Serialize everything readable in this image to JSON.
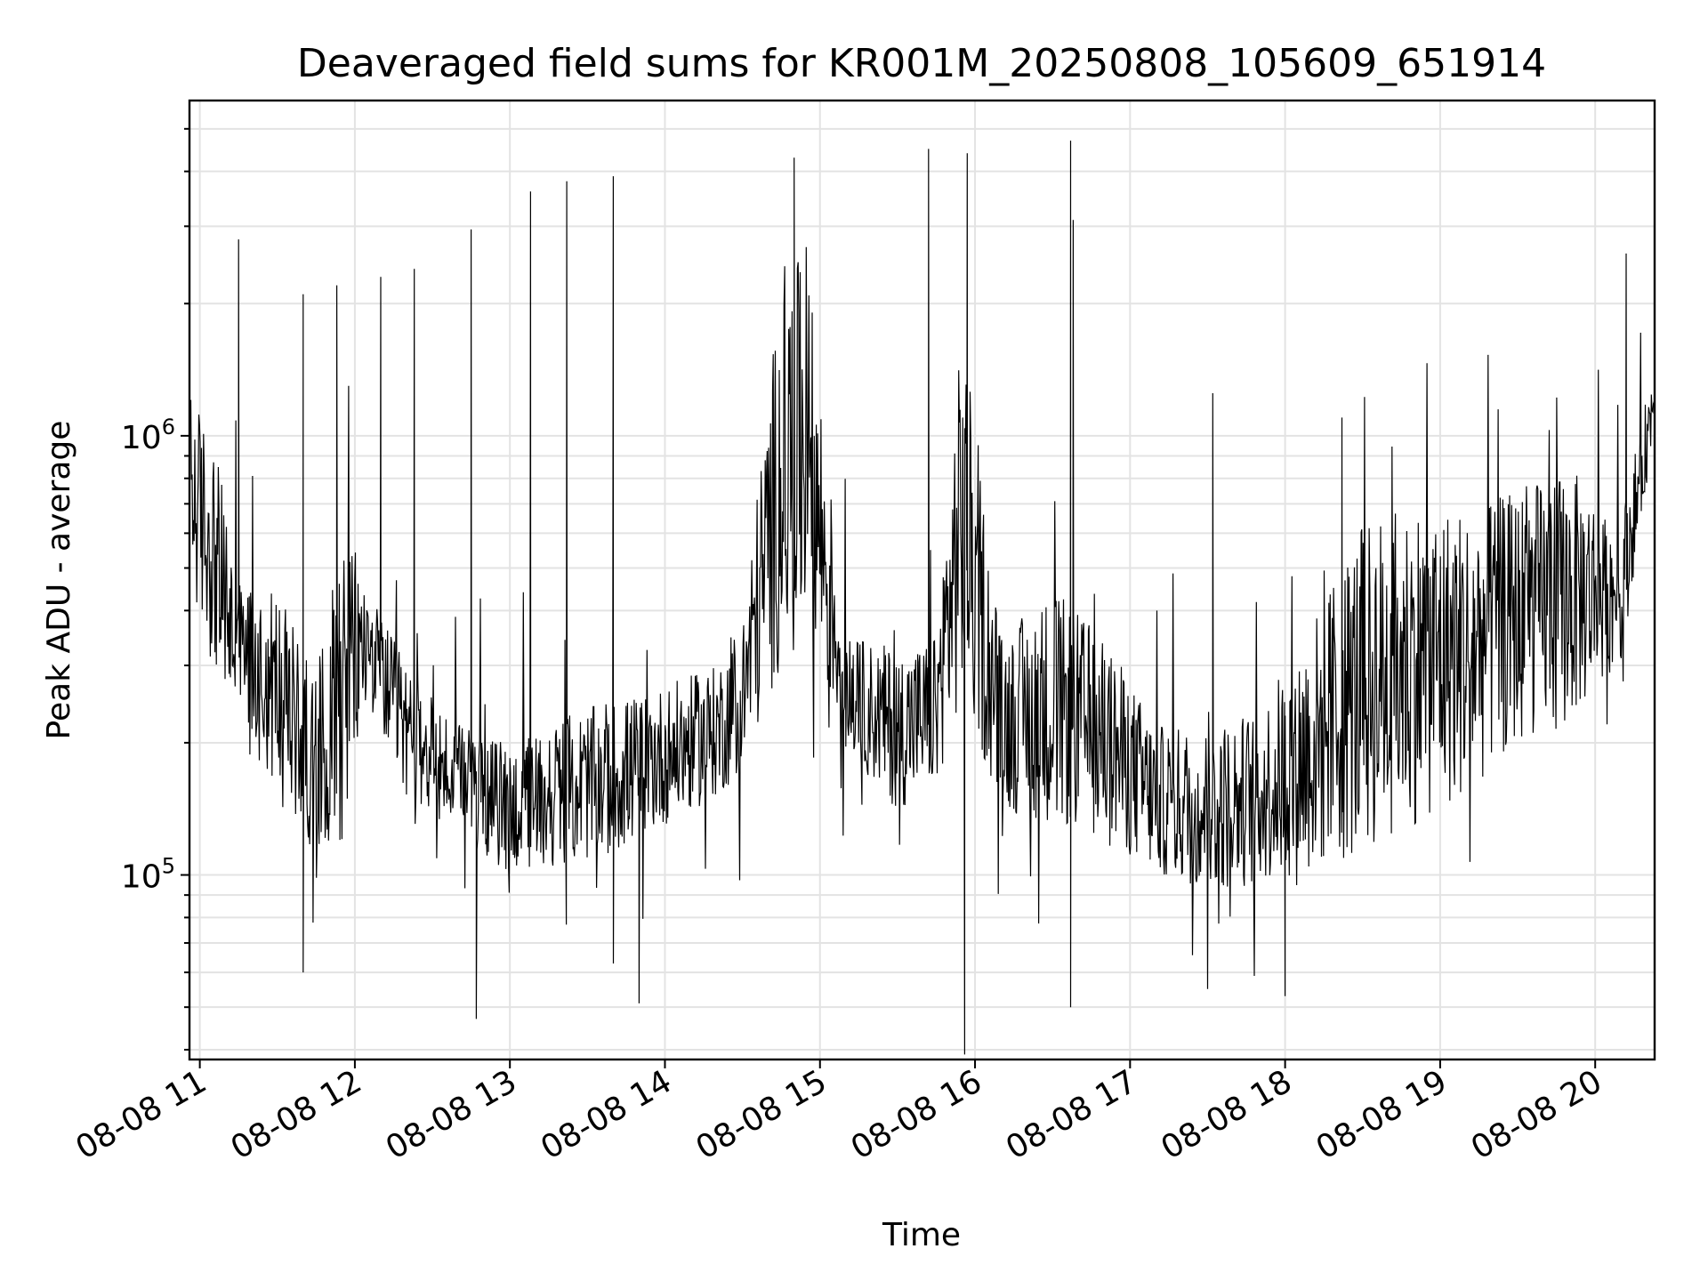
{
  "chart_data": {
    "type": "line",
    "title": "Deaveraged field sums for KR001M_20250808_105609_651914",
    "xlabel": "Time",
    "ylabel": "Peak ADU - average",
    "y_scale": "log",
    "ylim": [
      38000,
      5800000
    ],
    "xlim": [
      "2025-08-08 10:56",
      "2025-08-08 20:23"
    ],
    "grid": true,
    "line_color": "#000000",
    "x_ticks": [
      {
        "at": "2025-08-08 11:00",
        "label": "08-08 11"
      },
      {
        "at": "2025-08-08 12:00",
        "label": "08-08 12"
      },
      {
        "at": "2025-08-08 13:00",
        "label": "08-08 13"
      },
      {
        "at": "2025-08-08 14:00",
        "label": "08-08 14"
      },
      {
        "at": "2025-08-08 15:00",
        "label": "08-08 15"
      },
      {
        "at": "2025-08-08 16:00",
        "label": "08-08 16"
      },
      {
        "at": "2025-08-08 17:00",
        "label": "08-08 17"
      },
      {
        "at": "2025-08-08 18:00",
        "label": "08-08 18"
      },
      {
        "at": "2025-08-08 19:00",
        "label": "08-08 19"
      },
      {
        "at": "2025-08-08 20:00",
        "label": "08-08 20"
      }
    ],
    "y_ticks": [
      {
        "value": 100000,
        "base": "10",
        "exp": "5"
      },
      {
        "value": 1000000,
        "base": "10",
        "exp": "6"
      }
    ],
    "series": [
      {
        "envelope": {
          "x": [
            "2025-08-08 10:56",
            "2025-08-08 11:05",
            "2025-08-08 11:15",
            "2025-08-08 11:30",
            "2025-08-08 11:45",
            "2025-08-08 11:55",
            "2025-08-08 12:05",
            "2025-08-08 12:20",
            "2025-08-08 12:40",
            "2025-08-08 13:00",
            "2025-08-08 13:20",
            "2025-08-08 13:40",
            "2025-08-08 14:00",
            "2025-08-08 14:20",
            "2025-08-08 14:30",
            "2025-08-08 14:45",
            "2025-08-08 14:55",
            "2025-08-08 15:10",
            "2025-08-08 15:30",
            "2025-08-08 15:45",
            "2025-08-08 15:55",
            "2025-08-08 16:10",
            "2025-08-08 16:30",
            "2025-08-08 16:50",
            "2025-08-08 17:10",
            "2025-08-08 17:30",
            "2025-08-08 17:50",
            "2025-08-08 18:10",
            "2025-08-08 18:30",
            "2025-08-08 18:50",
            "2025-08-08 19:10",
            "2025-08-08 19:30",
            "2025-08-08 19:50",
            "2025-08-08 20:10",
            "2025-08-08 20:23"
          ],
          "low": [
            450000,
            300000,
            200000,
            160000,
            110000,
            120000,
            250000,
            150000,
            120000,
            100000,
            105000,
            110000,
            130000,
            150000,
            170000,
            300000,
            350000,
            190000,
            140000,
            160000,
            250000,
            140000,
            130000,
            120000,
            100000,
            90000,
            95000,
            100000,
            110000,
            130000,
            150000,
            200000,
            220000,
            300000,
            1050000
          ],
          "high": [
            1300000,
            1000000,
            500000,
            450000,
            280000,
            700000,
            450000,
            300000,
            220000,
            200000,
            230000,
            250000,
            270000,
            300000,
            380000,
            2300000,
            2600000,
            350000,
            330000,
            350000,
            1800000,
            350000,
            450000,
            350000,
            220000,
            220000,
            240000,
            380000,
            650000,
            720000,
            700000,
            750000,
            850000,
            650000,
            1500000
          ]
        },
        "spikes": [
          {
            "x": "2025-08-08 11:15",
            "y": 2800000
          },
          {
            "x": "2025-08-08 11:40",
            "y": 2100000
          },
          {
            "x": "2025-08-08 11:53",
            "y": 2200000
          },
          {
            "x": "2025-08-08 12:10",
            "y": 2300000
          },
          {
            "x": "2025-08-08 12:23",
            "y": 2400000
          },
          {
            "x": "2025-08-08 12:45",
            "y": 2950000
          },
          {
            "x": "2025-08-08 13:08",
            "y": 3600000
          },
          {
            "x": "2025-08-08 13:22",
            "y": 3800000
          },
          {
            "x": "2025-08-08 13:40",
            "y": 3900000
          },
          {
            "x": "2025-08-08 14:50",
            "y": 4300000
          },
          {
            "x": "2025-08-08 15:42",
            "y": 4500000
          },
          {
            "x": "2025-08-08 15:57",
            "y": 4400000
          },
          {
            "x": "2025-08-08 16:37",
            "y": 4700000
          },
          {
            "x": "2025-08-08 16:38",
            "y": 3100000
          },
          {
            "x": "2025-08-08 17:32",
            "y": 1250000
          },
          {
            "x": "2025-08-08 18:22",
            "y": 1100000
          },
          {
            "x": "2025-08-08 20:12",
            "y": 2600000
          },
          {
            "x": "2025-08-08 12:47",
            "y": 47000
          },
          {
            "x": "2025-08-08 15:56",
            "y": 39000
          },
          {
            "x": "2025-08-08 16:37",
            "y": 50000
          },
          {
            "x": "2025-08-08 13:50",
            "y": 51000
          },
          {
            "x": "2025-08-08 11:40",
            "y": 60000
          },
          {
            "x": "2025-08-08 17:30",
            "y": 55000
          },
          {
            "x": "2025-08-08 18:00",
            "y": 53000
          }
        ]
      }
    ]
  }
}
